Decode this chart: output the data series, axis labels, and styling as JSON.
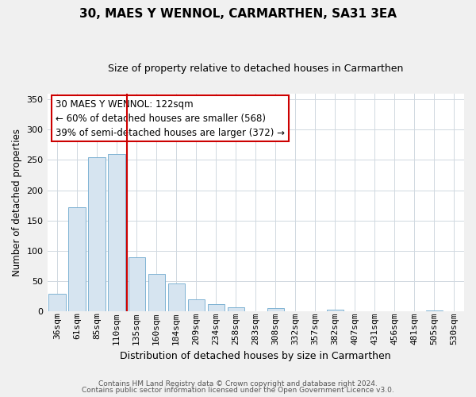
{
  "title": "30, MAES Y WENNOL, CARMARTHEN, SA31 3EA",
  "subtitle": "Size of property relative to detached houses in Carmarthen",
  "xlabel": "Distribution of detached houses by size in Carmarthen",
  "ylabel": "Number of detached properties",
  "bar_labels": [
    "36sqm",
    "61sqm",
    "85sqm",
    "110sqm",
    "135sqm",
    "160sqm",
    "184sqm",
    "209sqm",
    "234sqm",
    "258sqm",
    "283sqm",
    "308sqm",
    "332sqm",
    "357sqm",
    "382sqm",
    "407sqm",
    "431sqm",
    "456sqm",
    "481sqm",
    "505sqm",
    "530sqm"
  ],
  "bar_values": [
    29,
    172,
    255,
    260,
    89,
    62,
    46,
    20,
    11,
    6,
    0,
    5,
    0,
    0,
    2,
    0,
    0,
    0,
    0,
    1,
    0
  ],
  "bar_fill_color": "#d6e4f0",
  "bar_edge_color": "#7fb3d3",
  "vline_color": "#cc0000",
  "vline_x": 3.5,
  "ylim": [
    0,
    360
  ],
  "yticks": [
    0,
    50,
    100,
    150,
    200,
    250,
    300,
    350
  ],
  "annotation_title": "30 MAES Y WENNOL: 122sqm",
  "annotation_line1": "← 60% of detached houses are smaller (568)",
  "annotation_line2": "39% of semi-detached houses are larger (372) →",
  "footer_line1": "Contains HM Land Registry data © Crown copyright and database right 2024.",
  "footer_line2": "Contains public sector information licensed under the Open Government Licence v3.0.",
  "bg_color": "#f0f0f0",
  "plot_bg_color": "#ffffff",
  "grid_color": "#d0d8e0",
  "title_fontsize": 11,
  "subtitle_fontsize": 9,
  "ylabel_fontsize": 8.5,
  "xlabel_fontsize": 9,
  "tick_fontsize": 8,
  "annotation_fontsize": 8.5,
  "footer_fontsize": 6.5
}
